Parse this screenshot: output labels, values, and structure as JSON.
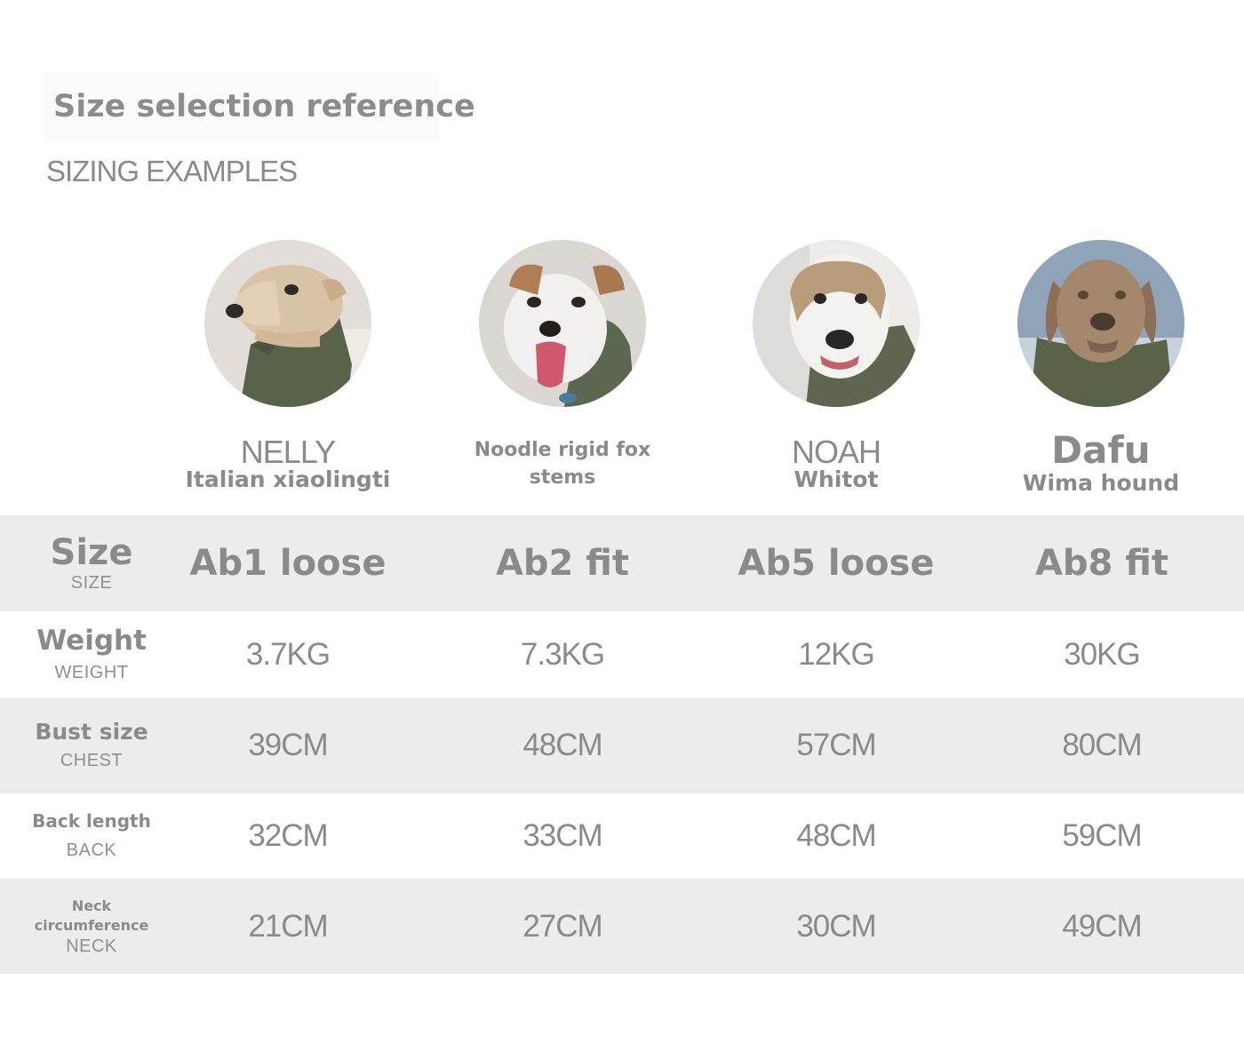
{
  "header": {
    "title": "Size selection reference",
    "subtitle": "SIZING EXAMPLES"
  },
  "dogs": [
    {
      "name": "NELLY",
      "breed": "Italian xiaolingti",
      "photo_icon": "italian-greyhound-photo"
    },
    {
      "name": "",
      "breed": "Noodle rigid fox stems",
      "photo_icon": "wire-fox-terrier-photo"
    },
    {
      "name": "NOAH",
      "breed": "Whitot",
      "photo_icon": "whippet-photo"
    },
    {
      "name": "Dafu",
      "breed": "Wima hound",
      "photo_icon": "weimaraner-photo"
    }
  ],
  "table": {
    "rows": [
      {
        "label": "Size",
        "sub": "SIZE",
        "values": [
          "Ab1 loose",
          "Ab2 fit",
          "Ab5 loose",
          "Ab8 fit"
        ]
      },
      {
        "label": "Weight",
        "sub": "WEIGHT",
        "values": [
          "3.7KG",
          "7.3KG",
          "12KG",
          "30KG"
        ]
      },
      {
        "label": "Bust size",
        "sub": "CHEST",
        "values": [
          "39CM",
          "48CM",
          "57CM",
          "80CM"
        ]
      },
      {
        "label": "Back length",
        "sub": "BACK",
        "values": [
          "32CM",
          "33CM",
          "48CM",
          "59CM"
        ]
      },
      {
        "label": "Neck circumference",
        "sub": "NECK",
        "values": [
          "21CM",
          "27CM",
          "30CM",
          "49CM"
        ]
      }
    ]
  },
  "colors": {
    "text": "#8a8a8a",
    "row_band": "#ececec",
    "jacket": "#59634a"
  }
}
